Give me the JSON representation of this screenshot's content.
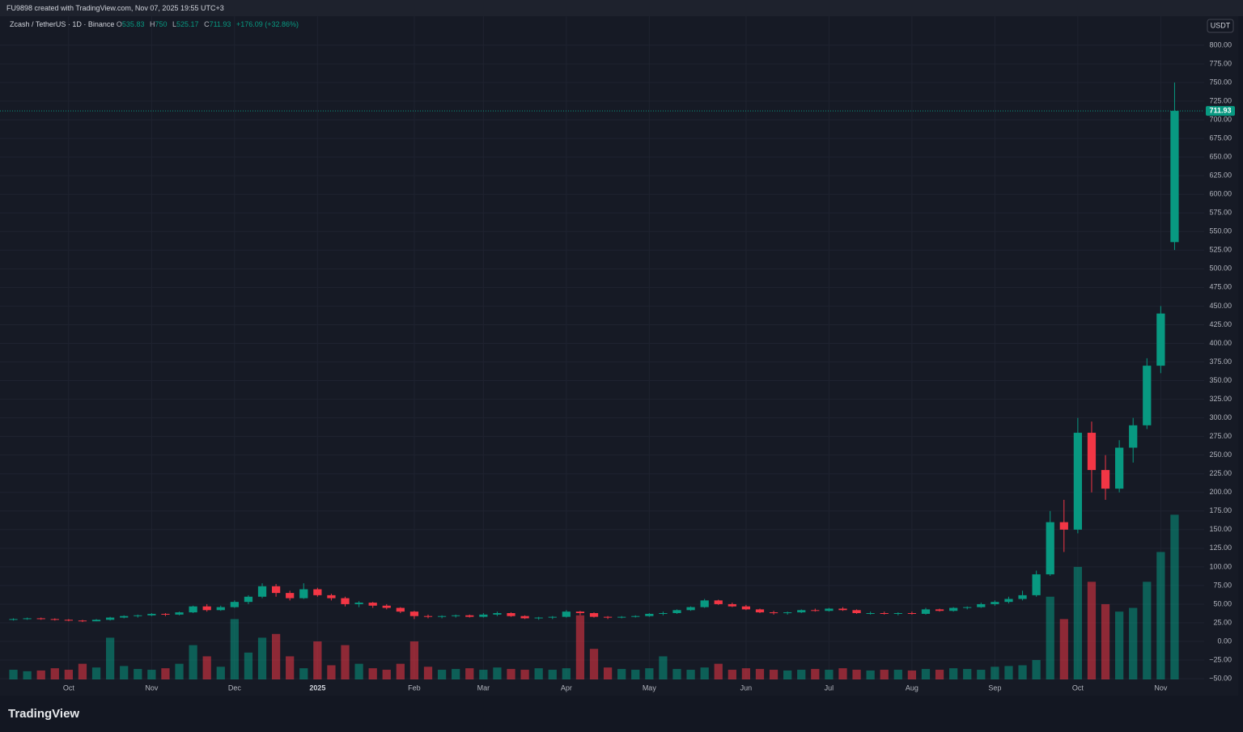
{
  "chart_data": {
    "type": "candlestick",
    "caption": "FU9898 created with TradingView.com, Nov 07, 2025 19:55 UTC+3",
    "symbol": "Zcash / TetherUS · 1D · Binance",
    "ohlc_letters": [
      "O",
      "H",
      "L",
      "C"
    ],
    "change_label": "+176.09 (+32.86%)",
    "currency": "USDT",
    "brand": "TradingView",
    "up_color": "#089981",
    "down_color": "#f23645",
    "grid": true,
    "categories": [
      null,
      null,
      null,
      null,
      "Oct",
      null,
      null,
      null,
      null,
      null,
      "Nov",
      null,
      null,
      null,
      null,
      null,
      "Dec",
      null,
      null,
      null,
      null,
      null,
      "2025",
      null,
      null,
      null,
      null,
      null,
      null,
      "Feb",
      null,
      null,
      null,
      null,
      "Mar",
      null,
      null,
      null,
      null,
      null,
      "Apr",
      null,
      null,
      null,
      null,
      null,
      "May",
      null,
      null,
      null,
      null,
      null,
      null,
      "Jun",
      null,
      null,
      null,
      null,
      null,
      "Jul",
      null,
      null,
      null,
      null,
      null,
      "Aug",
      null,
      null,
      null,
      null,
      null,
      "Sep",
      null,
      null,
      null,
      null,
      null,
      "Oct",
      null,
      null,
      null,
      null,
      null,
      "Nov",
      null
    ],
    "open": [
      29,
      30,
      31,
      30,
      29,
      28,
      27,
      29,
      32,
      34,
      35,
      37,
      36,
      39,
      47,
      42,
      46,
      53,
      60,
      74,
      65,
      58,
      70,
      62,
      58,
      50,
      52,
      48,
      45,
      40,
      34,
      33,
      34,
      35,
      33,
      36,
      38,
      34,
      31,
      32,
      33,
      40,
      38,
      33,
      32,
      33,
      34,
      37,
      38,
      42,
      46,
      55,
      50,
      47,
      43,
      39,
      38,
      39,
      42,
      41,
      44,
      42,
      38,
      38,
      37,
      38,
      37,
      43,
      41,
      45,
      46,
      50,
      53,
      57,
      62,
      90,
      160,
      150,
      280,
      230,
      205,
      260,
      290,
      370,
      535.83
    ],
    "high": [
      31,
      32,
      32,
      31,
      30,
      29,
      30,
      33,
      35,
      36,
      38,
      38,
      40,
      48,
      50,
      48,
      55,
      62,
      78,
      77,
      68,
      78,
      72,
      64,
      60,
      54,
      53,
      50,
      46,
      41,
      36,
      35,
      36,
      36,
      38,
      40,
      39,
      35,
      33,
      34,
      42,
      41,
      39,
      34,
      34,
      35,
      38,
      40,
      43,
      47,
      57,
      56,
      52,
      49,
      44,
      41,
      40,
      43,
      44,
      45,
      46,
      43,
      40,
      40,
      39,
      40,
      45,
      44,
      46,
      47,
      52,
      55,
      60,
      68,
      95,
      175,
      190,
      300,
      295,
      250,
      270,
      300,
      380,
      450,
      750
    ],
    "low": [
      28,
      29,
      29,
      28,
      27,
      26,
      27,
      28,
      31,
      32,
      34,
      34,
      35,
      38,
      40,
      41,
      45,
      50,
      58,
      60,
      55,
      57,
      60,
      55,
      47,
      46,
      45,
      43,
      38,
      30,
      31,
      31,
      32,
      32,
      32,
      34,
      33,
      30,
      29,
      30,
      32,
      35,
      32,
      30,
      31,
      32,
      33,
      35,
      37,
      41,
      45,
      49,
      46,
      42,
      38,
      36,
      36,
      38,
      40,
      40,
      41,
      37,
      36,
      36,
      35,
      36,
      36,
      40,
      40,
      43,
      45,
      48,
      51,
      55,
      60,
      88,
      120,
      145,
      200,
      190,
      200,
      240,
      285,
      360,
      525.17
    ],
    "close": [
      30,
      31,
      30,
      29,
      28,
      27,
      29,
      32,
      34,
      35,
      37,
      36,
      39,
      47,
      42,
      46,
      53,
      60,
      74,
      65,
      58,
      70,
      62,
      58,
      50,
      52,
      48,
      45,
      40,
      34,
      33,
      34,
      35,
      33,
      36,
      38,
      34,
      31,
      32,
      33,
      40,
      38,
      33,
      32,
      33,
      34,
      37,
      38,
      42,
      46,
      55,
      50,
      47,
      43,
      39,
      38,
      39,
      42,
      41,
      44,
      42,
      38,
      38,
      37,
      38,
      37,
      43,
      41,
      45,
      46,
      50,
      53,
      57,
      62,
      90,
      160,
      150,
      280,
      230,
      205,
      260,
      290,
      370,
      440,
      711.93
    ],
    "volume": [
      -38,
      -40,
      -39,
      -36,
      -38,
      -30,
      -35,
      5,
      -33,
      -37,
      -38,
      -36,
      -30,
      -5,
      -20,
      -34,
      30,
      -15,
      5,
      10,
      -20,
      -36,
      0,
      -32,
      -5,
      -30,
      -36,
      -38,
      -30,
      0,
      -34,
      -38,
      -37,
      -36,
      -38,
      -35,
      -37,
      -38,
      -36,
      -38,
      -36,
      35,
      -10,
      -35,
      -37,
      -38,
      -36,
      -20,
      -37,
      -38,
      -35,
      -30,
      -38,
      -36,
      -37,
      -38,
      -39,
      -38,
      -37,
      -38,
      -36,
      -38,
      -39,
      -38,
      -38,
      -39,
      -37,
      -38,
      -36,
      -37,
      -38,
      -34,
      -33,
      -32,
      -25,
      60,
      30,
      100,
      80,
      50,
      40,
      45,
      80,
      120,
      170
    ],
    "ylim": [
      -51,
      839
    ],
    "yticks": [
      {
        "value": -50,
        "label": "−50.00"
      },
      {
        "value": -25,
        "label": "−25.00"
      },
      {
        "value": 0,
        "label": "0.00"
      },
      {
        "value": 25,
        "label": "25.00"
      },
      {
        "value": 50,
        "label": "50.00"
      },
      {
        "value": 75,
        "label": "75.00"
      },
      {
        "value": 100,
        "label": "100.00"
      },
      {
        "value": 125,
        "label": "125.00"
      },
      {
        "value": 150,
        "label": "150.00"
      },
      {
        "value": 175,
        "label": "175.00"
      },
      {
        "value": 200,
        "label": "200.00"
      },
      {
        "value": 225,
        "label": "225.00"
      },
      {
        "value": 250,
        "label": "250.00"
      },
      {
        "value": 275,
        "label": "275.00"
      },
      {
        "value": 300,
        "label": "300.00"
      },
      {
        "value": 325,
        "label": "325.00"
      },
      {
        "value": 350,
        "label": "350.00"
      },
      {
        "value": 375,
        "label": "375.00"
      },
      {
        "value": 400,
        "label": "400.00"
      },
      {
        "value": 425,
        "label": "425.00"
      },
      {
        "value": 450,
        "label": "450.00"
      },
      {
        "value": 475,
        "label": "475.00"
      },
      {
        "value": 500,
        "label": "500.00"
      },
      {
        "value": 525,
        "label": "525.00"
      },
      {
        "value": 550,
        "label": "550.00"
      },
      {
        "value": 575,
        "label": "575.00"
      },
      {
        "value": 600,
        "label": "600.00"
      },
      {
        "value": 625,
        "label": "625.00"
      },
      {
        "value": 650,
        "label": "650.00"
      },
      {
        "value": 675,
        "label": "675.00"
      },
      {
        "value": 700,
        "label": "700.00"
      },
      {
        "value": 725,
        "label": "725.00"
      },
      {
        "value": 750,
        "label": "750.00"
      },
      {
        "value": 775,
        "label": "775.00"
      },
      {
        "value": 800,
        "label": "800.00"
      }
    ]
  }
}
